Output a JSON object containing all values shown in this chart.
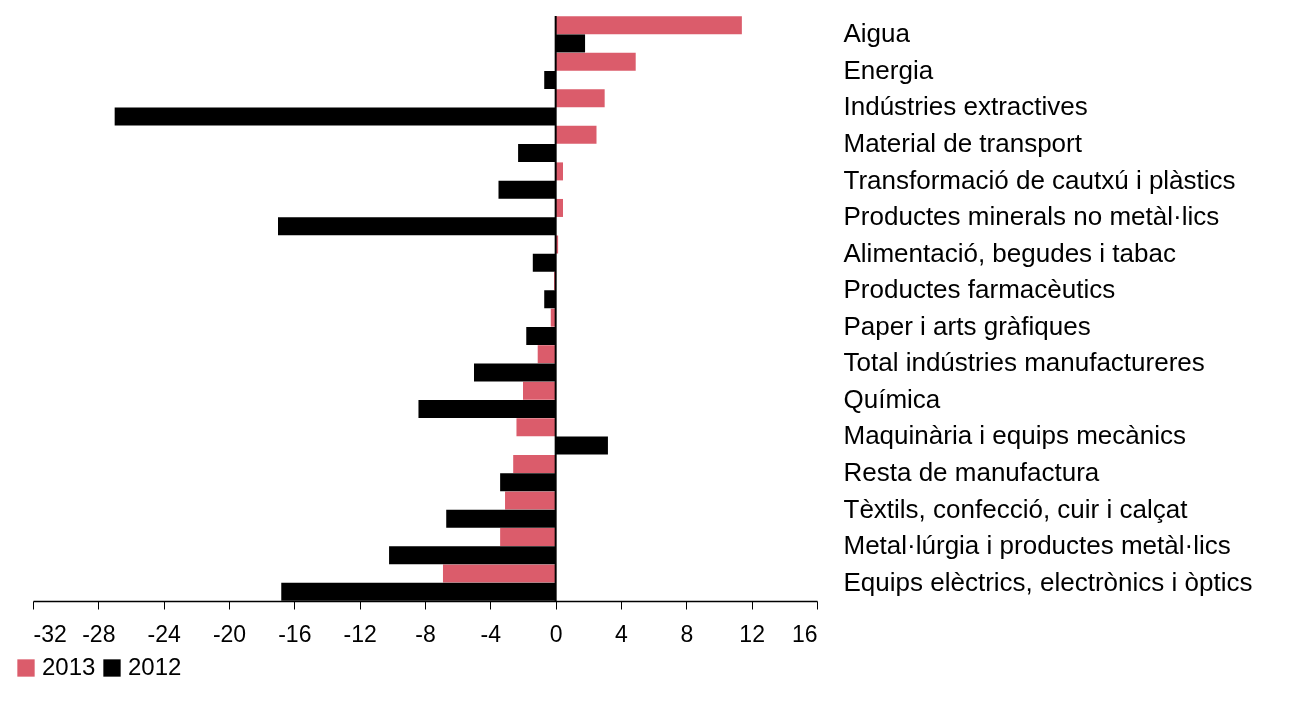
{
  "chart_data": {
    "type": "bar",
    "orientation": "horizontal",
    "categories": [
      "Aigua",
      "Energia",
      "Indústries extractives",
      "Material de transport",
      "Transformació de cautxú i plàstics",
      "Productes minerals no metàl·lics",
      "Alimentació, begudes i tabac",
      "Productes farmacèutics",
      "Paper i arts gràfiques",
      "Total indústries manufactureres",
      "Química",
      "Maquinària i equips mecànics",
      "Resta de manufactura",
      "Tèxtils, confecció, cuir i calçat",
      "Metal·lúrgia i productes metàl·lics",
      "Equips elèctrics, electrònics i òptics"
    ],
    "series": [
      {
        "name": "2013",
        "color": "#db5c6b",
        "values": [
          11.4,
          4.9,
          3.0,
          2.5,
          0.45,
          0.45,
          0.15,
          -0.1,
          -0.3,
          -1.1,
          -2.0,
          -2.4,
          -2.6,
          -3.1,
          -3.4,
          -6.9
        ]
      },
      {
        "name": "2012",
        "color": "#000000",
        "values": [
          1.8,
          -0.7,
          -27.0,
          -2.3,
          -3.5,
          -17.0,
          -1.4,
          -0.7,
          -1.8,
          -5.0,
          -8.4,
          3.2,
          -3.4,
          -6.7,
          -10.2,
          -16.8
        ]
      }
    ],
    "xlim": [
      -32,
      16
    ],
    "xticks": [
      -32,
      -28,
      -24,
      -20,
      -16,
      -12,
      -8,
      -4,
      0,
      4,
      8,
      12,
      16
    ],
    "ref_lines": [
      {
        "axis": "x",
        "value": 0,
        "color": "#000000"
      }
    ],
    "grid": false,
    "legend": "bottom left"
  }
}
